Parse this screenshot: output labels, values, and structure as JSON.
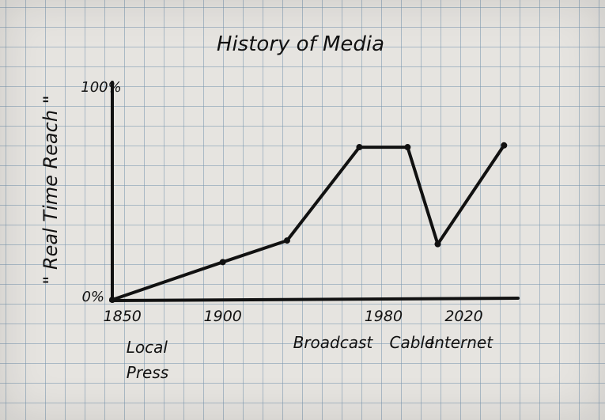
{
  "chart_data": {
    "type": "line",
    "title": "History of Media",
    "ylabel": "\" Real Time Reach \"",
    "xlabel": "",
    "y_ticks": [
      "0%",
      "100%"
    ],
    "ylim": [
      0,
      100
    ],
    "x_ticks": [
      {
        "label": "1850",
        "x": 1850
      },
      {
        "label": "1900",
        "x": 1900
      },
      {
        "label": "1980",
        "x": 1980
      },
      {
        "label": "2020",
        "x": 2020
      }
    ],
    "xlim": [
      1845,
      2045
    ],
    "annotations": [
      {
        "text": "Local",
        "x": 1852
      },
      {
        "text": "Press",
        "x": 1852
      },
      {
        "text": "Broadcast",
        "x": 1935
      },
      {
        "text": "Cable",
        "x": 1983
      },
      {
        "text": "Internet",
        "x": 2003
      }
    ],
    "series": [
      {
        "x": [
          1845,
          1900,
          1932,
          1968,
          1992,
          2007,
          2040
        ],
        "y": [
          0,
          21,
          33,
          85,
          85,
          31,
          86
        ]
      }
    ],
    "grid": true,
    "ink_color": "#111111"
  }
}
